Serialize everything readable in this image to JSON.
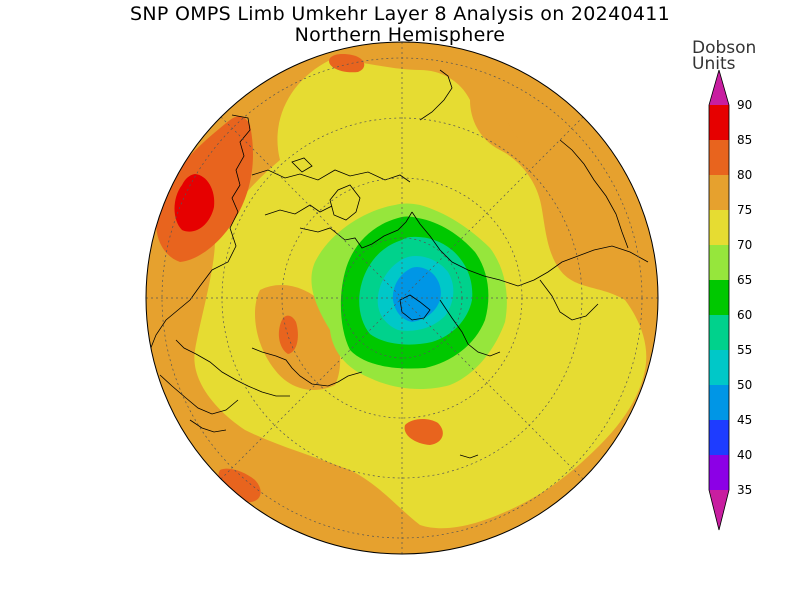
{
  "title": {
    "line1": "SNP OMPS Limb Umkehr Layer 8 Analysis on 20240411",
    "line2": "Northern Hemisphere"
  },
  "colorbar": {
    "unit_line1": "Dobson",
    "unit_line2": "Units",
    "labels": [
      "90",
      "85",
      "80",
      "75",
      "70",
      "65",
      "60",
      "55",
      "50",
      "45",
      "40",
      "35"
    ],
    "colors": {
      "above_90": "#c81ea0",
      "85-90": "#e60000",
      "80-85": "#e8641e",
      "75-80": "#e6a12e",
      "70-75": "#e6dc32",
      "65-70": "#96e63c",
      "60-65": "#00c800",
      "55-60": "#00d28c",
      "50-55": "#00c8c8",
      "45-50": "#0096e6",
      "40-45": "#1e3cff",
      "35-40": "#8c00e6",
      "below_35": "#c81ea0"
    }
  },
  "map": {
    "projection": "north-polar-stereographic",
    "field_min_dobson": 50,
    "field_max_dobson": 90
  }
}
